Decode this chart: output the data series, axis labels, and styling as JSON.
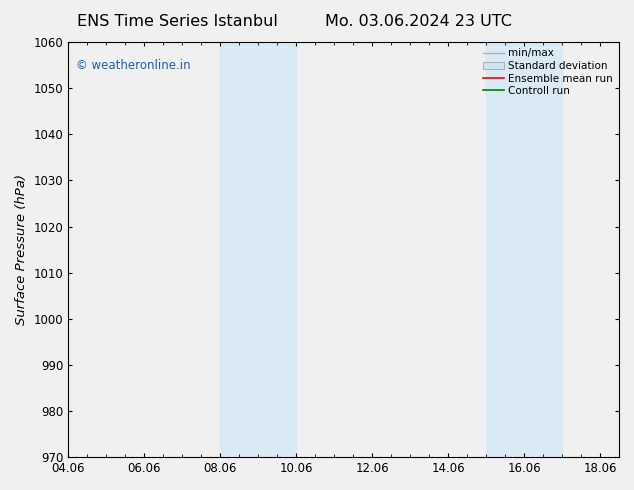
{
  "title_left": "ENS Time Series Istanbul",
  "title_right": "Mo. 03.06.2024 23 UTC",
  "ylabel": "Surface Pressure (hPa)",
  "ylim": [
    970,
    1060
  ],
  "yticks": [
    970,
    980,
    990,
    1000,
    1010,
    1020,
    1030,
    1040,
    1050,
    1060
  ],
  "xlim_start": 4.06,
  "xlim_end": 18.56,
  "xticks": [
    4.06,
    6.06,
    8.06,
    10.06,
    12.06,
    14.06,
    16.06,
    18.06
  ],
  "xtick_labels": [
    "04.06",
    "06.06",
    "08.06",
    "10.06",
    "12.06",
    "14.06",
    "16.06",
    "18.06"
  ],
  "shaded_bands": [
    {
      "x_start": 8.06,
      "x_end": 10.06
    },
    {
      "x_start": 15.06,
      "x_end": 17.06
    }
  ],
  "shaded_color": "#daeaf5",
  "watermark_text": "© weatheronline.in",
  "watermark_color": "#1e5db5",
  "legend_entries": [
    {
      "label": "min/max",
      "color": "#b0b0b0",
      "type": "line"
    },
    {
      "label": "Standard deviation",
      "color": "#d0e4f0",
      "type": "box"
    },
    {
      "label": "Ensemble mean run",
      "color": "#ff0000",
      "type": "line"
    },
    {
      "label": "Controll run",
      "color": "#008000",
      "type": "line"
    }
  ],
  "bg_color": "#f0f0f0",
  "plot_bg_color": "#f0f0f0",
  "grid_color": "#c8c8c8",
  "title_fontsize": 11.5,
  "tick_fontsize": 8.5,
  "ylabel_fontsize": 9.5,
  "legend_fontsize": 7.5,
  "watermark_fontsize": 8.5
}
